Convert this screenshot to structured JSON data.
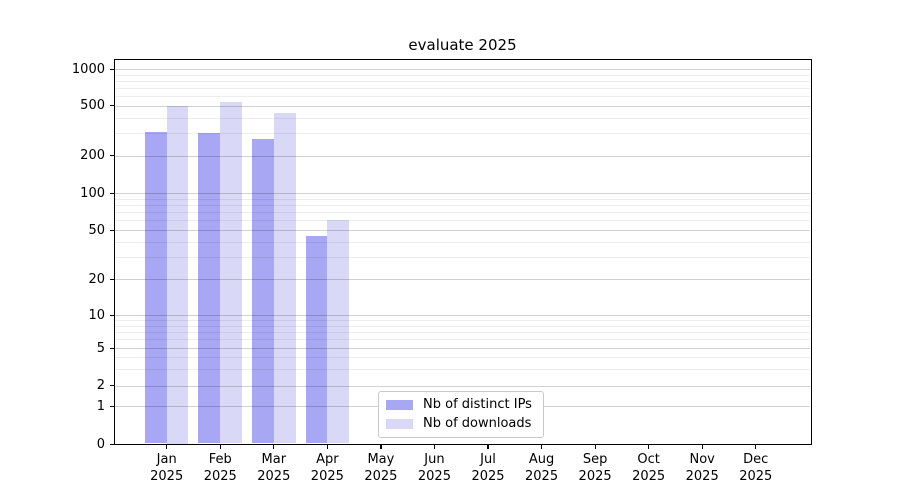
{
  "chart_data": {
    "type": "bar",
    "title": "evaluate 2025",
    "categories": [
      "Jan",
      "Feb",
      "Mar",
      "Apr",
      "May",
      "Jun",
      "Jul",
      "Aug",
      "Sep",
      "Oct",
      "Nov",
      "Dec"
    ],
    "year_label": "2025",
    "series": [
      {
        "name": "Nb of distinct IPs",
        "color": "#a7a7f3",
        "values": [
          310,
          300,
          270,
          45,
          null,
          null,
          null,
          null,
          null,
          null,
          null,
          null
        ]
      },
      {
        "name": "Nb of downloads",
        "color": "#d9d9f7",
        "values": [
          500,
          530,
          440,
          60,
          null,
          null,
          null,
          null,
          null,
          null,
          null,
          null
        ]
      }
    ],
    "y_ticks": [
      "1000",
      "500",
      "200",
      "100",
      "50",
      "20",
      "10",
      "5",
      "2",
      "1",
      "0"
    ],
    "y_scale": "log-like",
    "ylim": [
      0,
      1000
    ],
    "grid": true,
    "legend_position": "lower-center"
  }
}
